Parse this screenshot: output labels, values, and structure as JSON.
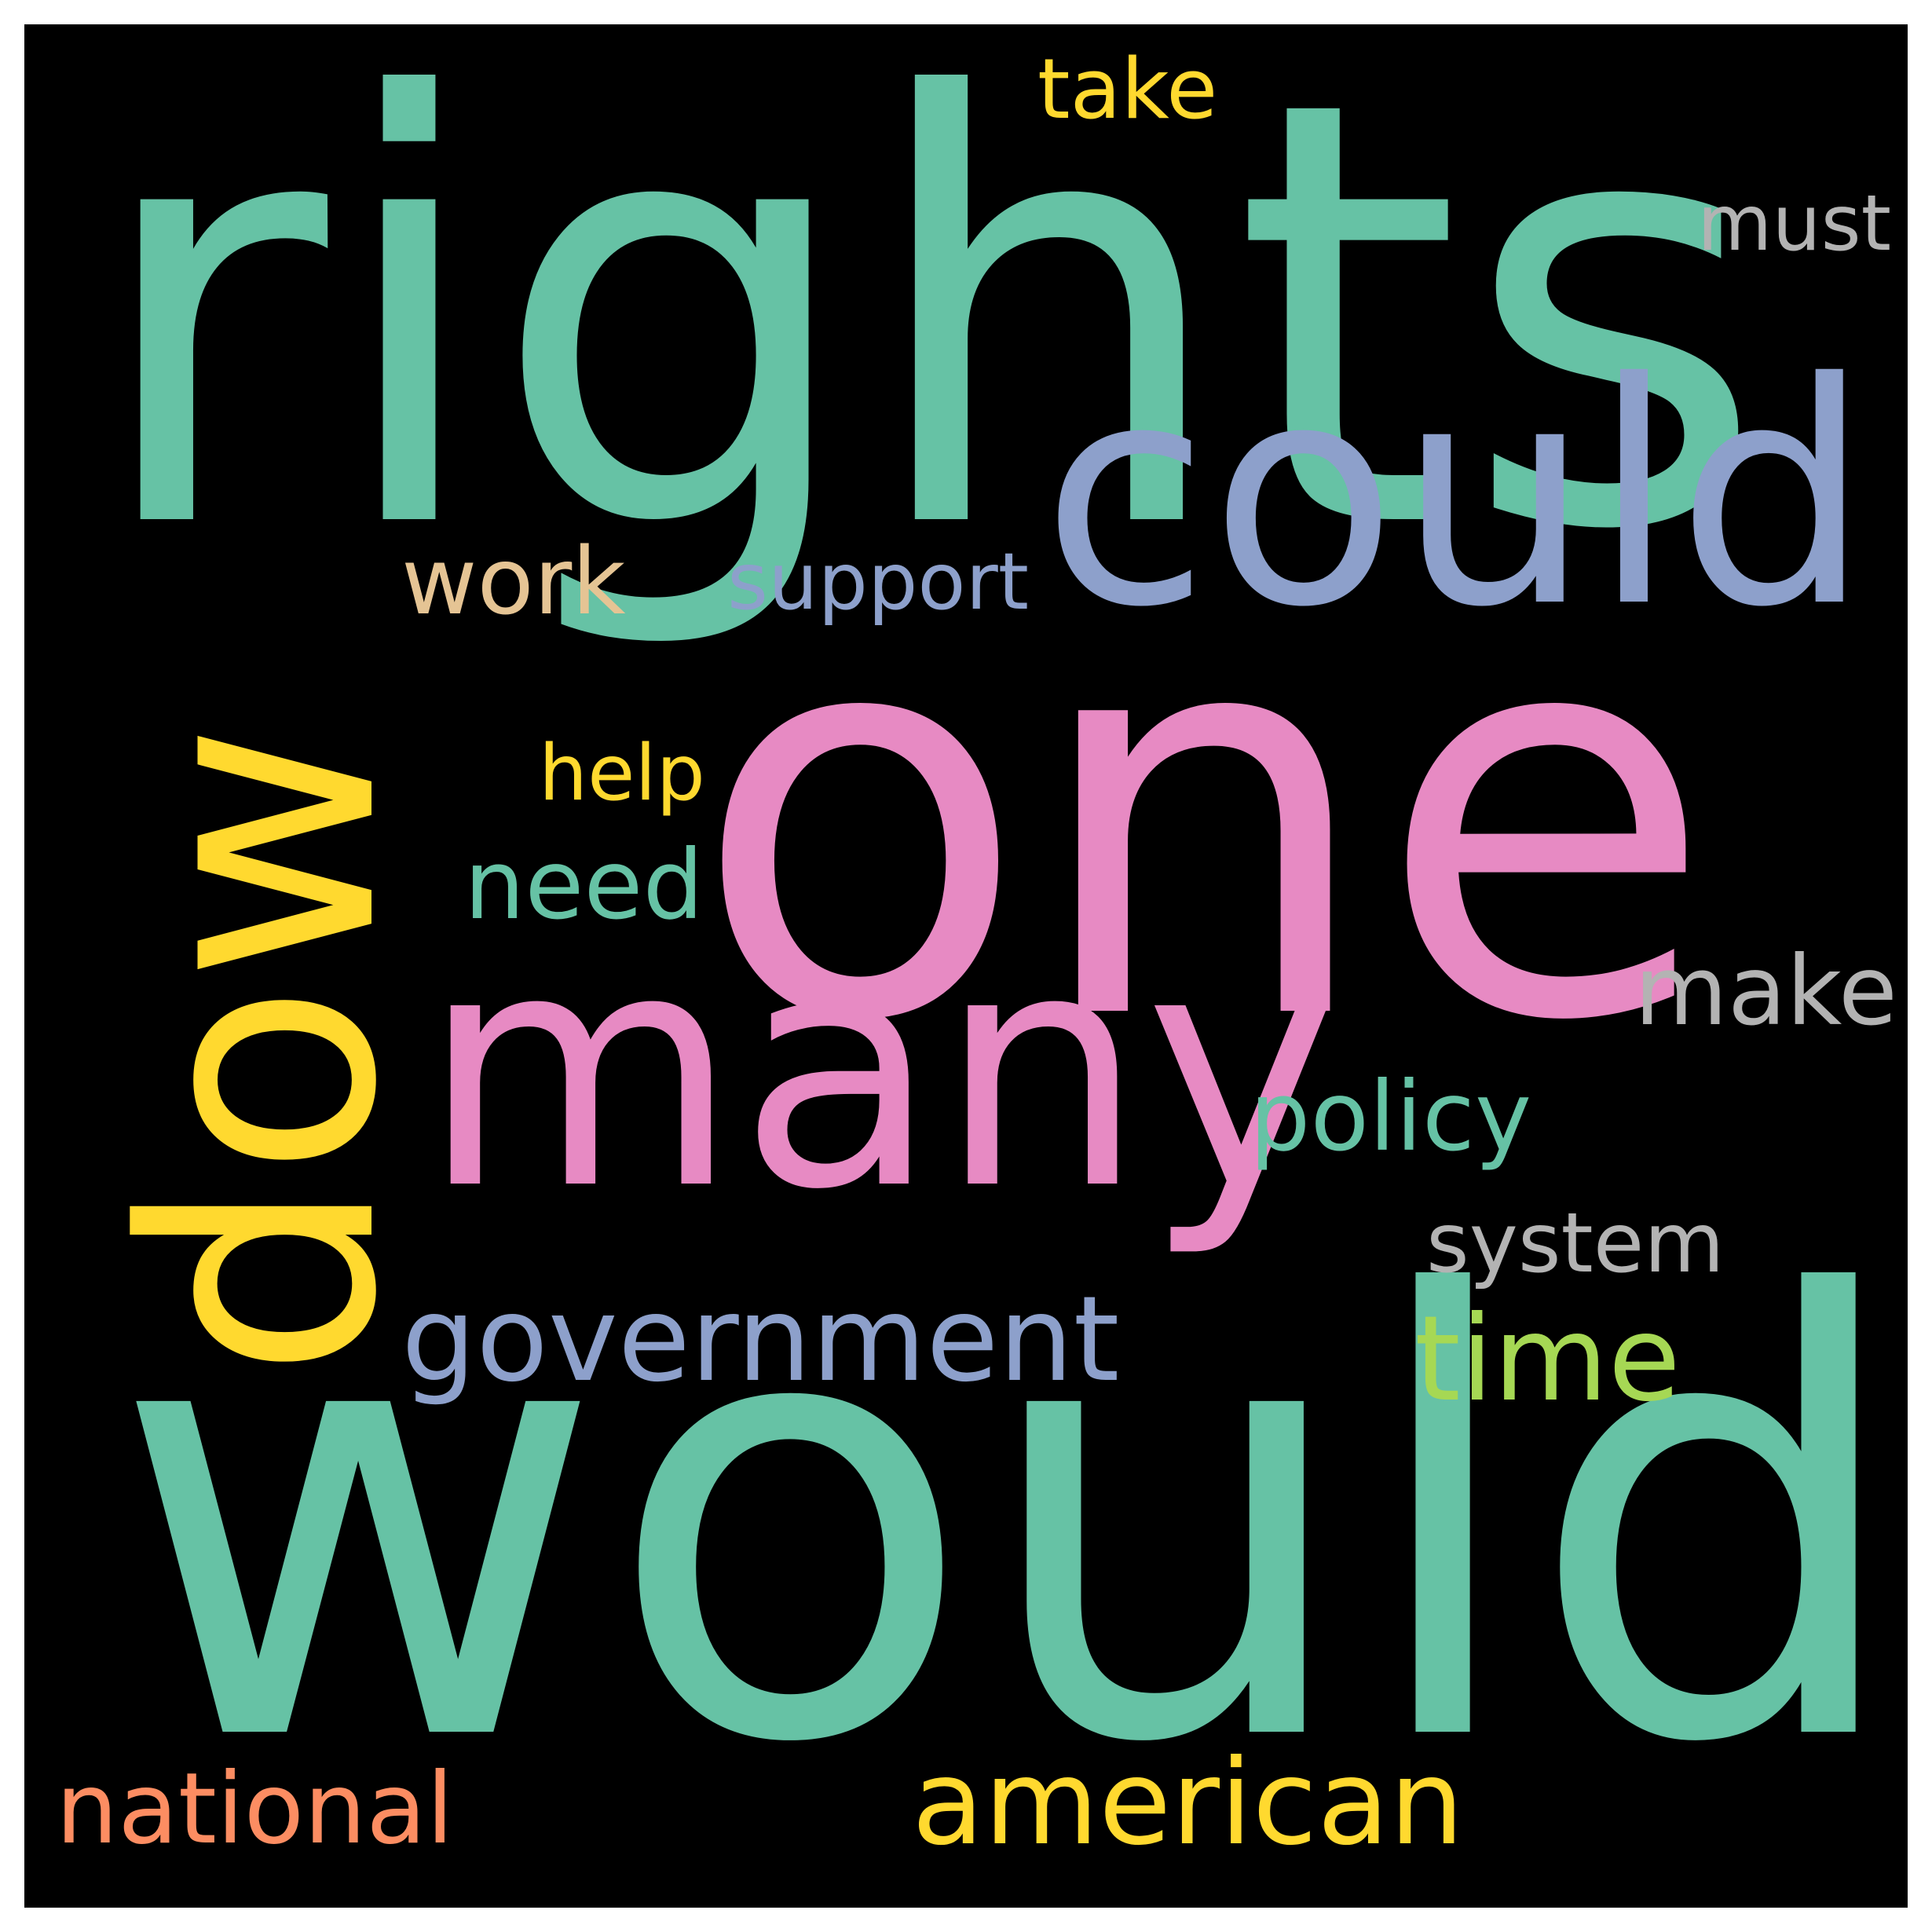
{
  "words": {
    "rights": {
      "text": "rights",
      "color": "#66c2a5"
    },
    "would": {
      "text": "would",
      "color": "#66c2a5"
    },
    "one": {
      "text": "one",
      "color": "#e78ac3"
    },
    "could": {
      "text": "could",
      "color": "#8da0cb"
    },
    "many": {
      "text": "many",
      "color": "#e78ac3"
    },
    "dow": {
      "text": "dow",
      "color": "#ffd92f"
    },
    "government": {
      "text": "government",
      "color": "#8da0cb"
    },
    "time": {
      "text": "time",
      "color": "#a6d854"
    },
    "american": {
      "text": "american",
      "color": "#ffd92f"
    },
    "national": {
      "text": "national",
      "color": "#fc8d62"
    },
    "make": {
      "text": "make",
      "color": "#b3b3b3"
    },
    "policy": {
      "text": "policy",
      "color": "#66c2a5"
    },
    "system": {
      "text": "system",
      "color": "#b3b3b3"
    },
    "need": {
      "text": "need",
      "color": "#66c2a5"
    },
    "work": {
      "text": "work",
      "color": "#e5c494"
    },
    "support": {
      "text": "support",
      "color": "#8da0cb"
    },
    "help": {
      "text": "help",
      "color": "#ffd92f"
    },
    "take": {
      "text": "take",
      "color": "#ffd92f"
    },
    "must": {
      "text": "must",
      "color": "#b3b3b3"
    }
  },
  "background_color": "#000000"
}
